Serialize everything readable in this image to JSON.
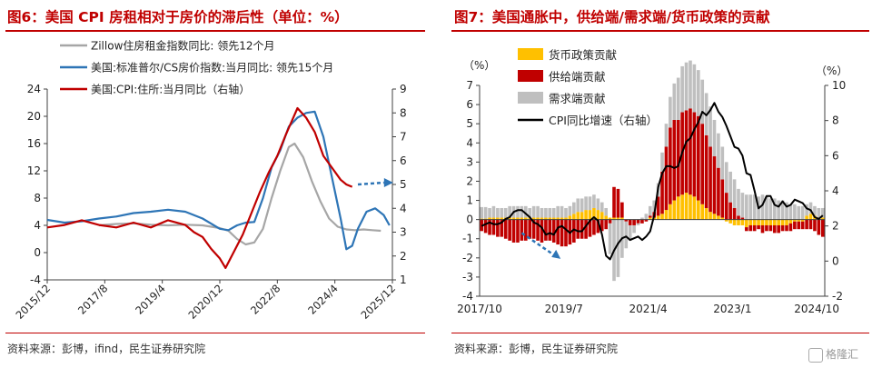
{
  "left_panel": {
    "title": "图6：美国 CPI 房租相对于房价的滞后性（单位：%）",
    "source": "资料来源：彭博，ifind，民生证券研究院"
  },
  "right_panel": {
    "title": "图7：美国通胀中，供给端/需求端/货币政策的贡献",
    "source": "资料来源：彭博，民生证券研究院"
  },
  "watermark": "格隆汇",
  "chart_data": [
    {
      "type": "line",
      "title": "图6：美国 CPI 房租相对于房价的滞后性（单位：%）",
      "xlabel": "",
      "ylabel": "",
      "x_tick_labels": [
        "2015/12",
        "2017/8",
        "2019/4",
        "2020/12",
        "2022/8",
        "2024/4",
        "2025/12"
      ],
      "x_range": [
        "2015/12",
        "2025/12"
      ],
      "ylim_left": [
        -4,
        24
      ],
      "yticks_left": [
        -4,
        0,
        4,
        8,
        12,
        16,
        20,
        24
      ],
      "ylim_right": [
        1,
        9
      ],
      "yticks_right": [
        1,
        2,
        3,
        4,
        5,
        6,
        7,
        8,
        9
      ],
      "grid": false,
      "legend_position": "top-left",
      "series": [
        {
          "name": "Zillow住房租金指数同比: 领先12个月",
          "axis": "left",
          "color": "#a6a6a6",
          "points": [
            [
              "2017/6",
              4.0
            ],
            [
              "2017/12",
              4.2
            ],
            [
              "2018/6",
              4.3
            ],
            [
              "2018/12",
              4.1
            ],
            [
              "2019/6",
              4.0
            ],
            [
              "2019/12",
              4.1
            ],
            [
              "2020/6",
              4.0
            ],
            [
              "2020/9",
              3.8
            ],
            [
              "2020/12",
              3.6
            ],
            [
              "2021/3",
              3.2
            ],
            [
              "2021/6",
              2.0
            ],
            [
              "2021/9",
              1.2
            ],
            [
              "2021/12",
              1.5
            ],
            [
              "2022/3",
              3.5
            ],
            [
              "2022/6",
              8.0
            ],
            [
              "2022/9",
              12.0
            ],
            [
              "2022/12",
              15.5
            ],
            [
              "2023/2",
              16.0
            ],
            [
              "2023/5",
              14.0
            ],
            [
              "2023/8",
              10.5
            ],
            [
              "2023/11",
              7.5
            ],
            [
              "2024/2",
              5.0
            ],
            [
              "2024/5",
              3.8
            ],
            [
              "2024/8",
              3.4
            ],
            [
              "2024/11",
              3.3
            ],
            [
              "2025/2",
              3.4
            ],
            [
              "2025/5",
              3.3
            ],
            [
              "2025/8",
              3.2
            ]
          ]
        },
        {
          "name": "美国:标准普尔/CS房价指数:当月同比: 领先15个月",
          "axis": "left",
          "color": "#2e75b6",
          "points": [
            [
              "2015/12",
              4.8
            ],
            [
              "2016/6",
              4.4
            ],
            [
              "2016/12",
              4.6
            ],
            [
              "2017/6",
              5.0
            ],
            [
              "2017/12",
              5.3
            ],
            [
              "2018/6",
              5.8
            ],
            [
              "2018/12",
              6.0
            ],
            [
              "2019/6",
              6.3
            ],
            [
              "2019/12",
              6.0
            ],
            [
              "2020/6",
              5.0
            ],
            [
              "2020/12",
              3.5
            ],
            [
              "2021/3",
              3.3
            ],
            [
              "2021/6",
              4.0
            ],
            [
              "2021/9",
              4.4
            ],
            [
              "2021/12",
              4.5
            ],
            [
              "2022/3",
              8.0
            ],
            [
              "2022/6",
              12.5
            ],
            [
              "2022/9",
              15.0
            ],
            [
              "2022/12",
              18.5
            ],
            [
              "2023/3",
              19.8
            ],
            [
              "2023/6",
              20.5
            ],
            [
              "2023/9",
              20.7
            ],
            [
              "2023/12",
              17.0
            ],
            [
              "2024/3",
              11.0
            ],
            [
              "2024/6",
              5.0
            ],
            [
              "2024/8",
              0.5
            ],
            [
              "2024/10",
              1.0
            ],
            [
              "2024/12",
              3.5
            ],
            [
              "2025/3",
              6.0
            ],
            [
              "2025/6",
              6.5
            ],
            [
              "2025/9",
              5.5
            ],
            [
              "2025/11",
              4.0
            ]
          ]
        },
        {
          "name": "美国:CPI:住所:当月同比（右轴）",
          "axis": "right",
          "color": "#c00000",
          "points": [
            [
              "2015/12",
              3.2
            ],
            [
              "2016/6",
              3.3
            ],
            [
              "2016/12",
              3.5
            ],
            [
              "2017/6",
              3.3
            ],
            [
              "2017/12",
              3.2
            ],
            [
              "2018/6",
              3.4
            ],
            [
              "2018/12",
              3.2
            ],
            [
              "2019/6",
              3.5
            ],
            [
              "2019/12",
              3.3
            ],
            [
              "2020/3",
              3.0
            ],
            [
              "2020/6",
              2.8
            ],
            [
              "2020/9",
              2.3
            ],
            [
              "2020/12",
              1.9
            ],
            [
              "2021/2",
              1.5
            ],
            [
              "2021/5",
              2.2
            ],
            [
              "2021/8",
              2.9
            ],
            [
              "2021/11",
              3.8
            ],
            [
              "2022/2",
              4.7
            ],
            [
              "2022/5",
              5.5
            ],
            [
              "2022/8",
              6.2
            ],
            [
              "2022/11",
              7.1
            ],
            [
              "2023/3",
              8.2
            ],
            [
              "2023/6",
              7.8
            ],
            [
              "2023/9",
              7.2
            ],
            [
              "2023/12",
              6.2
            ],
            [
              "2024/3",
              5.7
            ],
            [
              "2024/6",
              5.2
            ],
            [
              "2024/8",
              5.0
            ],
            [
              "2024/10",
              4.9
            ]
          ]
        }
      ],
      "annotations": [
        {
          "type": "arrow",
          "style": "dashed",
          "color": "#2e75b6",
          "meaning": "house-price lead projection"
        }
      ]
    },
    {
      "type": "bar",
      "stacked": true,
      "title": "图7：美国通胀中，供给端/需求端/货币政策的贡献",
      "xlabel": "",
      "ylabel": "",
      "left_unit": "（%）",
      "right_unit": "（%）",
      "x_tick_labels": [
        "2017/10",
        "2019/7",
        "2021/4",
        "2023/1",
        "2024/10"
      ],
      "x_range": [
        "2017/10",
        "2024/12"
      ],
      "ylim_left": [
        -4,
        7
      ],
      "yticks_left": [
        -4,
        -3,
        -2,
        -1,
        0,
        1,
        2,
        3,
        4,
        5,
        6,
        7
      ],
      "ylim_right": [
        -2,
        10
      ],
      "yticks_right": [
        -2,
        0,
        2,
        4,
        6,
        8,
        10
      ],
      "grid": false,
      "legend_position": "top-left",
      "series": [
        {
          "name": "货币政策贡献",
          "color": "#ffc000",
          "kind": "bar",
          "values": [
            0.05,
            0.05,
            0.1,
            0.1,
            0.1,
            0.1,
            0.1,
            0.1,
            0.1,
            0.1,
            0.1,
            0.1,
            0.1,
            0.1,
            0.1,
            0.1,
            0.1,
            0.1,
            0.1,
            0.1,
            0.1,
            0.1,
            0.2,
            0.3,
            0.4,
            0.4,
            0.5,
            0.5,
            0.6,
            0.5,
            0.4,
            0.2,
            0.1,
            0.1,
            0.1,
            0.1,
            0.0,
            0.0,
            0.0,
            0.0,
            0.0,
            0.0,
            0.1,
            0.1,
            0.2,
            0.3,
            0.5,
            0.8,
            1.0,
            1.2,
            1.3,
            1.4,
            1.3,
            1.2,
            1.0,
            0.8,
            0.6,
            0.4,
            0.3,
            0.2,
            0.1,
            -0.1,
            -0.2,
            -0.3,
            -0.3,
            -0.3,
            -0.4,
            -0.3,
            -0.3,
            -0.3,
            -0.3,
            -0.3,
            -0.3,
            -0.3,
            -0.3,
            -0.3,
            -0.3,
            -0.2,
            -0.1,
            -0.1,
            -0.1,
            0.2,
            0.3,
            0.2,
            0.1,
            0.1
          ]
        },
        {
          "name": "供给端贡献",
          "color": "#c00000",
          "kind": "bar",
          "values": [
            -0.6,
            -0.7,
            -0.8,
            -0.8,
            -0.9,
            -0.9,
            -1.0,
            -1.1,
            -1.2,
            -1.2,
            -1.1,
            -1.1,
            -1.0,
            -1.0,
            -1.1,
            -1.2,
            -1.1,
            -1.1,
            -1.2,
            -1.3,
            -1.4,
            -1.4,
            -1.3,
            -1.2,
            -1.0,
            -1.0,
            -1.0,
            -0.9,
            -0.8,
            -0.7,
            -0.6,
            -0.5,
            -0.2,
            1.6,
            1.5,
            0.8,
            -0.1,
            -0.3,
            -0.3,
            -0.2,
            -0.2,
            -0.1,
            0.1,
            0.3,
            1.0,
            2.2,
            3.3,
            4.0,
            4.2,
            4.0,
            4.3,
            4.3,
            4.5,
            4.4,
            4.4,
            4.2,
            3.8,
            3.4,
            3.0,
            2.5,
            2.0,
            1.4,
            0.9,
            0.6,
            0.2,
            0.1,
            -0.2,
            -0.3,
            -0.3,
            -0.2,
            -0.4,
            -0.3,
            -0.3,
            -0.4,
            -0.4,
            -0.3,
            -0.3,
            -0.4,
            -0.4,
            -0.4,
            -0.4,
            -0.5,
            -0.5,
            -0.6,
            -0.8,
            -0.9
          ]
        },
        {
          "name": "需求端贡献",
          "color": "#bfbfbf",
          "kind": "bar",
          "values": [
            0.6,
            0.6,
            0.5,
            0.6,
            0.5,
            0.5,
            0.5,
            0.6,
            0.6,
            0.6,
            0.6,
            0.6,
            0.5,
            0.6,
            0.6,
            0.5,
            0.5,
            0.5,
            0.5,
            0.6,
            0.6,
            0.5,
            0.5,
            0.6,
            0.7,
            0.7,
            0.7,
            0.7,
            0.7,
            0.6,
            0.5,
            0.4,
            -1.6,
            -3.2,
            -3.0,
            -2.0,
            -1.4,
            -0.8,
            -0.4,
            -0.1,
            0.1,
            0.3,
            0.5,
            0.6,
            0.7,
            1.0,
            1.2,
            1.6,
            1.9,
            2.2,
            2.4,
            2.5,
            2.5,
            2.5,
            2.4,
            2.3,
            2.2,
            2.1,
            1.9,
            1.8,
            1.7,
            1.6,
            1.6,
            1.5,
            1.4,
            1.3,
            1.3,
            1.3,
            1.3,
            1.2,
            1.3,
            1.2,
            1.1,
            1.1,
            1.0,
            1.0,
            0.9,
            0.8,
            0.8,
            0.7,
            0.7,
            0.6,
            0.6,
            0.5,
            0.5,
            0.5
          ]
        },
        {
          "name": "CPI同比增速（右轴）",
          "color": "#000000",
          "kind": "line",
          "axis": "right",
          "values": [
            2.0,
            2.1,
            2.2,
            2.1,
            2.1,
            2.2,
            2.4,
            2.5,
            2.8,
            2.9,
            2.9,
            2.7,
            2.5,
            2.2,
            2.1,
            1.9,
            1.5,
            1.6,
            1.5,
            1.9,
            2.0,
            1.8,
            1.6,
            1.8,
            1.7,
            1.7,
            2.0,
            2.3,
            2.5,
            2.3,
            1.5,
            0.3,
            0.1,
            0.6,
            1.0,
            1.3,
            1.4,
            1.2,
            1.3,
            1.4,
            1.2,
            1.4,
            1.7,
            2.6,
            4.2,
            5.0,
            5.4,
            5.4,
            5.3,
            5.4,
            6.2,
            6.8,
            7.0,
            7.5,
            7.9,
            8.5,
            8.3,
            8.6,
            9.0,
            8.5,
            8.2,
            7.7,
            7.1,
            6.5,
            6.4,
            6.0,
            5.0,
            4.9,
            4.0,
            3.0,
            3.2,
            3.7,
            3.7,
            3.2,
            3.1,
            3.4,
            3.1,
            3.2,
            3.5,
            3.4,
            3.3,
            3.0,
            2.9,
            2.5,
            2.4,
            2.6
          ]
        }
      ],
      "annotations": [
        {
          "type": "arrow",
          "style": "dashed",
          "color": "#2e75b6",
          "meaning": "downtrend"
        }
      ]
    }
  ]
}
